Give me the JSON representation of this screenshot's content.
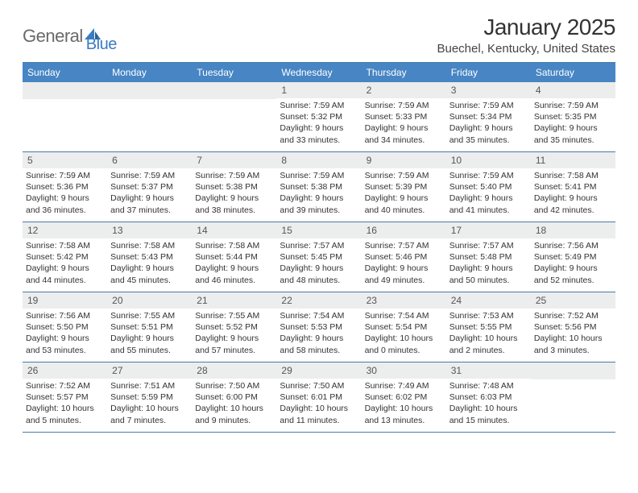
{
  "logo": {
    "text1": "General",
    "text2": "Blue"
  },
  "title": "January 2025",
  "location": "Buechel, Kentucky, United States",
  "colors": {
    "header_bg": "#4785c4",
    "header_text": "#ffffff",
    "daynum_bg": "#eceded",
    "border": "#4a7aa8",
    "logo_gray": "#6a6a6a",
    "logo_blue": "#3a7cc2"
  },
  "day_labels": [
    "Sunday",
    "Monday",
    "Tuesday",
    "Wednesday",
    "Thursday",
    "Friday",
    "Saturday"
  ],
  "weeks": [
    [
      null,
      null,
      null,
      {
        "n": "1",
        "r": "7:59 AM",
        "s": "5:32 PM",
        "d1": "9 hours",
        "d2": "33 minutes"
      },
      {
        "n": "2",
        "r": "7:59 AM",
        "s": "5:33 PM",
        "d1": "9 hours",
        "d2": "34 minutes"
      },
      {
        "n": "3",
        "r": "7:59 AM",
        "s": "5:34 PM",
        "d1": "9 hours",
        "d2": "35 minutes"
      },
      {
        "n": "4",
        "r": "7:59 AM",
        "s": "5:35 PM",
        "d1": "9 hours",
        "d2": "35 minutes"
      }
    ],
    [
      {
        "n": "5",
        "r": "7:59 AM",
        "s": "5:36 PM",
        "d1": "9 hours",
        "d2": "36 minutes"
      },
      {
        "n": "6",
        "r": "7:59 AM",
        "s": "5:37 PM",
        "d1": "9 hours",
        "d2": "37 minutes"
      },
      {
        "n": "7",
        "r": "7:59 AM",
        "s": "5:38 PM",
        "d1": "9 hours",
        "d2": "38 minutes"
      },
      {
        "n": "8",
        "r": "7:59 AM",
        "s": "5:38 PM",
        "d1": "9 hours",
        "d2": "39 minutes"
      },
      {
        "n": "9",
        "r": "7:59 AM",
        "s": "5:39 PM",
        "d1": "9 hours",
        "d2": "40 minutes"
      },
      {
        "n": "10",
        "r": "7:59 AM",
        "s": "5:40 PM",
        "d1": "9 hours",
        "d2": "41 minutes"
      },
      {
        "n": "11",
        "r": "7:58 AM",
        "s": "5:41 PM",
        "d1": "9 hours",
        "d2": "42 minutes"
      }
    ],
    [
      {
        "n": "12",
        "r": "7:58 AM",
        "s": "5:42 PM",
        "d1": "9 hours",
        "d2": "44 minutes"
      },
      {
        "n": "13",
        "r": "7:58 AM",
        "s": "5:43 PM",
        "d1": "9 hours",
        "d2": "45 minutes"
      },
      {
        "n": "14",
        "r": "7:58 AM",
        "s": "5:44 PM",
        "d1": "9 hours",
        "d2": "46 minutes"
      },
      {
        "n": "15",
        "r": "7:57 AM",
        "s": "5:45 PM",
        "d1": "9 hours",
        "d2": "48 minutes"
      },
      {
        "n": "16",
        "r": "7:57 AM",
        "s": "5:46 PM",
        "d1": "9 hours",
        "d2": "49 minutes"
      },
      {
        "n": "17",
        "r": "7:57 AM",
        "s": "5:48 PM",
        "d1": "9 hours",
        "d2": "50 minutes"
      },
      {
        "n": "18",
        "r": "7:56 AM",
        "s": "5:49 PM",
        "d1": "9 hours",
        "d2": "52 minutes"
      }
    ],
    [
      {
        "n": "19",
        "r": "7:56 AM",
        "s": "5:50 PM",
        "d1": "9 hours",
        "d2": "53 minutes"
      },
      {
        "n": "20",
        "r": "7:55 AM",
        "s": "5:51 PM",
        "d1": "9 hours",
        "d2": "55 minutes"
      },
      {
        "n": "21",
        "r": "7:55 AM",
        "s": "5:52 PM",
        "d1": "9 hours",
        "d2": "57 minutes"
      },
      {
        "n": "22",
        "r": "7:54 AM",
        "s": "5:53 PM",
        "d1": "9 hours",
        "d2": "58 minutes"
      },
      {
        "n": "23",
        "r": "7:54 AM",
        "s": "5:54 PM",
        "d1": "10 hours",
        "d2": "0 minutes"
      },
      {
        "n": "24",
        "r": "7:53 AM",
        "s": "5:55 PM",
        "d1": "10 hours",
        "d2": "2 minutes"
      },
      {
        "n": "25",
        "r": "7:52 AM",
        "s": "5:56 PM",
        "d1": "10 hours",
        "d2": "3 minutes"
      }
    ],
    [
      {
        "n": "26",
        "r": "7:52 AM",
        "s": "5:57 PM",
        "d1": "10 hours",
        "d2": "5 minutes"
      },
      {
        "n": "27",
        "r": "7:51 AM",
        "s": "5:59 PM",
        "d1": "10 hours",
        "d2": "7 minutes"
      },
      {
        "n": "28",
        "r": "7:50 AM",
        "s": "6:00 PM",
        "d1": "10 hours",
        "d2": "9 minutes"
      },
      {
        "n": "29",
        "r": "7:50 AM",
        "s": "6:01 PM",
        "d1": "10 hours",
        "d2": "11 minutes"
      },
      {
        "n": "30",
        "r": "7:49 AM",
        "s": "6:02 PM",
        "d1": "10 hours",
        "d2": "13 minutes"
      },
      {
        "n": "31",
        "r": "7:48 AM",
        "s": "6:03 PM",
        "d1": "10 hours",
        "d2": "15 minutes"
      },
      null
    ]
  ],
  "labels": {
    "sunrise": "Sunrise:",
    "sunset": "Sunset:",
    "daylight": "Daylight:",
    "and": "and"
  }
}
